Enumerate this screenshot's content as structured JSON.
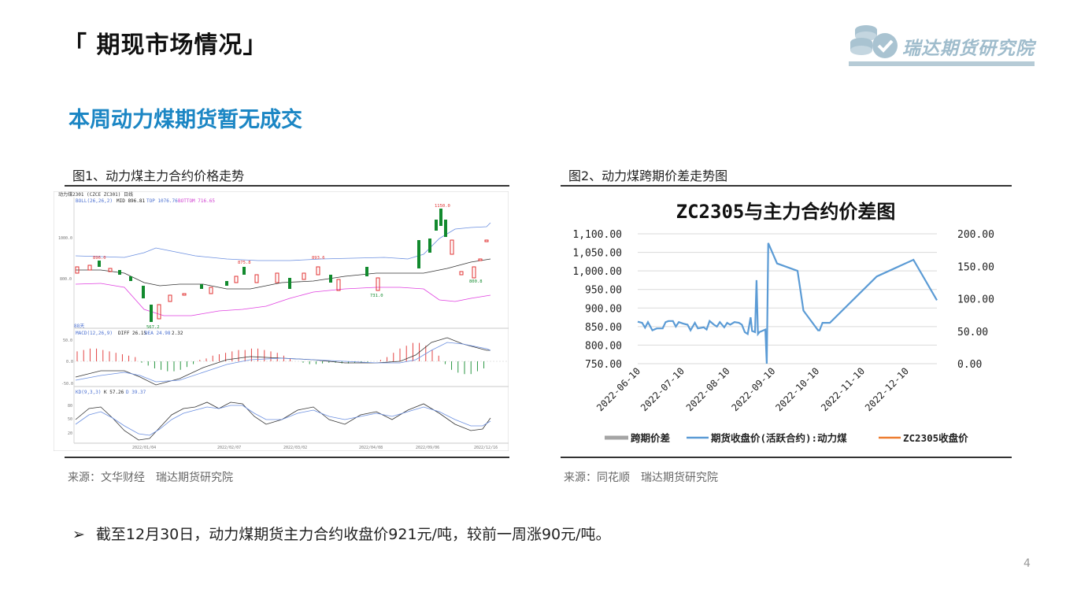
{
  "page": {
    "title": "「 期现市场情况」",
    "subtitle": "本周动力煤期货暂无成交",
    "brand": "瑞达期货研究院",
    "note": "截至12月30日，动力煤期货主力合约收盘价921元/吨，较前一周涨90元/吨。",
    "page_number": "4",
    "accent_color": "#1b86c4"
  },
  "figure1": {
    "caption": "图1、动力煤主力合约价格走势",
    "source": "来源：文华财经　瑞达期货研究院",
    "header": "动力煤2301 (CZCE ZC301)  日线",
    "boll_label": "BOLL(26,26,2)",
    "boll_mid": "MID 896.81",
    "boll_top": "TOP 1076.76",
    "boll_bottom": "BOTTOM 716.65",
    "macd_label": "MACD(12,26,9)",
    "macd_diff": "DIFF 26.15",
    "macd_dea": "DEA 24.98",
    "macd_val": "2.32",
    "kd_label": "KD(9,3,3)",
    "kd_k": "K 57.26",
    "kd_d": "D 39.37",
    "price_ticks": [
      "1000.0",
      "800.0"
    ],
    "macd_ticks": [
      "50.0",
      "0.0",
      "-50.0"
    ],
    "kd_ticks": [
      "80",
      "50",
      "20"
    ],
    "date_ticks": [
      "2022/01/04",
      "2022/02/07",
      "2022/03/02",
      "2022/04/08",
      "2022/09/06",
      "2022/12/16"
    ],
    "annotations": [
      "896.0",
      "567.2",
      "875.8",
      "893.6",
      "731.0",
      "1150.0",
      "800.8"
    ],
    "volume_label": "88天"
  },
  "figure2": {
    "caption": "图2、动力煤跨期价差走势图",
    "source": "来源：同花顺　瑞达期货研究院"
  },
  "chart_data": {
    "type": "line",
    "title": "ZC2305与主力合约价差图",
    "x_ticks": [
      "2022-06-10",
      "2022-07-10",
      "2022-08-10",
      "2022-09-10",
      "2022-10-10",
      "2022-11-10",
      "2022-12-10"
    ],
    "y_left_ticks": [
      "1,100.00",
      "1,050.00",
      "1,000.00",
      "950.00",
      "900.00",
      "850.00",
      "800.00",
      "750.00"
    ],
    "y_right_ticks": [
      "200.00",
      "150.00",
      "100.00",
      "50.00",
      "0.00"
    ],
    "ylim_left": [
      750,
      1100
    ],
    "ylim_right": [
      0,
      200
    ],
    "legend_position": "bottom",
    "series": [
      {
        "name": "跨期价差",
        "color": "#a5a5a5",
        "axis": "right",
        "values": []
      },
      {
        "name": "期货收盘价(活跃合约):动力煤",
        "color": "#5b9bd5",
        "axis": "left",
        "points": [
          [
            "2022-06-10",
            863
          ],
          [
            "2022-06-13",
            860
          ],
          [
            "2022-06-15",
            847
          ],
          [
            "2022-06-17",
            862
          ],
          [
            "2022-06-20",
            840
          ],
          [
            "2022-06-23",
            845
          ],
          [
            "2022-06-27",
            845
          ],
          [
            "2022-06-29",
            862
          ],
          [
            "2022-07-01",
            865
          ],
          [
            "2022-07-04",
            865
          ],
          [
            "2022-07-06",
            850
          ],
          [
            "2022-07-08",
            862
          ],
          [
            "2022-07-11",
            858
          ],
          [
            "2022-07-14",
            855
          ],
          [
            "2022-07-16",
            840
          ],
          [
            "2022-07-19",
            860
          ],
          [
            "2022-07-21",
            845
          ],
          [
            "2022-07-25",
            848
          ],
          [
            "2022-07-27",
            842
          ],
          [
            "2022-07-29",
            865
          ],
          [
            "2022-08-01",
            855
          ],
          [
            "2022-08-03",
            850
          ],
          [
            "2022-08-05",
            862
          ],
          [
            "2022-08-08",
            848
          ],
          [
            "2022-08-10",
            860
          ],
          [
            "2022-08-12",
            855
          ],
          [
            "2022-08-15",
            862
          ],
          [
            "2022-08-18",
            860
          ],
          [
            "2022-08-20",
            855
          ],
          [
            "2022-08-22",
            835
          ],
          [
            "2022-08-24",
            830
          ],
          [
            "2022-08-26",
            875
          ],
          [
            "2022-08-27",
            838
          ],
          [
            "2022-08-29",
            835
          ],
          [
            "2022-08-30",
            975
          ],
          [
            "2022-08-31",
            830
          ],
          [
            "2022-09-01",
            835
          ],
          [
            "2022-09-05",
            842
          ],
          [
            "2022-09-06",
            750
          ],
          [
            "2022-09-07",
            1075
          ],
          [
            "2022-09-13",
            1020
          ],
          [
            "2022-09-27",
            1000
          ],
          [
            "2022-10-01",
            893
          ],
          [
            "2022-10-11",
            840
          ],
          [
            "2022-10-12",
            840
          ],
          [
            "2022-10-14",
            860
          ],
          [
            "2022-10-19",
            860
          ],
          [
            "2022-11-20",
            985
          ],
          [
            "2022-12-15",
            1030
          ],
          [
            "2022-12-31",
            921
          ]
        ]
      },
      {
        "name": "ZC2305收盘价",
        "color": "#ed7d31",
        "axis": "left",
        "values": []
      }
    ]
  }
}
